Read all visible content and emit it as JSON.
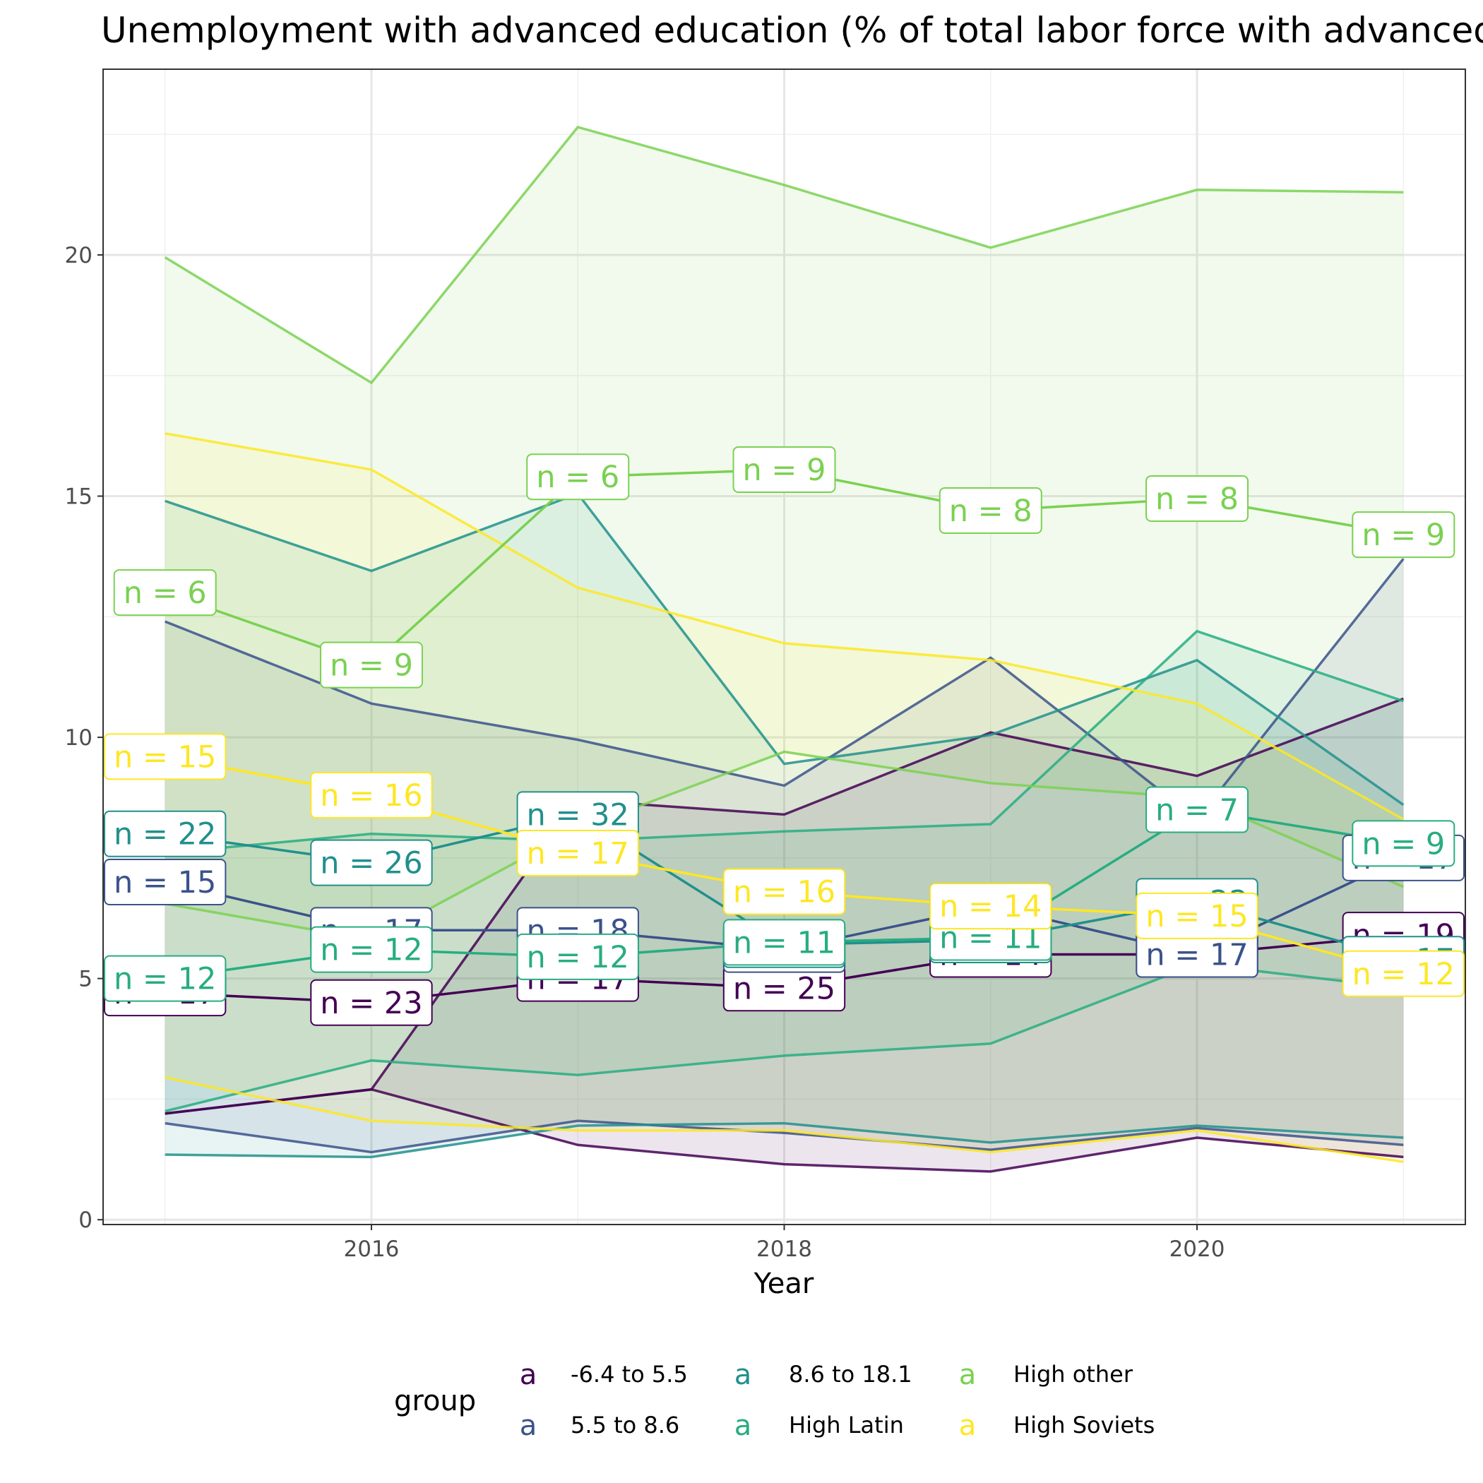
{
  "chart_data": {
    "type": "line",
    "title": "Unemployment with advanced education (% of total labor force with advanced education)",
    "xlabel": "Year",
    "ylabel": "",
    "x": [
      2015,
      2016,
      2017,
      2018,
      2019,
      2020,
      2021
    ],
    "xticks": [
      2016,
      2018,
      2020
    ],
    "yticks": [
      0,
      5,
      10,
      15,
      20
    ],
    "xlim": [
      2014.7,
      2021.3
    ],
    "ylim": [
      -0.1,
      23.85
    ],
    "grid": true,
    "legend": {
      "title": "group",
      "position": "bottom",
      "key_glyph": "a"
    },
    "groups": [
      {
        "name": "-6.4 to 5.5",
        "color": "#440154",
        "upper": [
          2.2,
          2.7,
          8.7,
          8.4,
          10.1,
          9.2,
          10.8
        ],
        "lower": [
          2.2,
          2.7,
          1.55,
          1.15,
          1.0,
          1.7,
          1.3
        ],
        "mean": [
          4.7,
          4.5,
          5.0,
          4.8,
          5.5,
          5.5,
          5.9
        ],
        "labels": [
          "n = 17",
          "n = 23",
          "n = 17",
          "n = 25",
          "n = 14",
          "n = 22",
          "n = 19"
        ]
      },
      {
        "name": "5.5 to 8.6",
        "color": "#3B528B",
        "upper": [
          12.4,
          10.7,
          9.95,
          9.0,
          11.65,
          8.3,
          13.7
        ],
        "lower": [
          2.0,
          1.4,
          2.05,
          1.8,
          1.45,
          1.9,
          1.55
        ],
        "mean": [
          7.0,
          6.0,
          6.0,
          5.6,
          6.5,
          5.5,
          7.5
        ],
        "labels": [
          "n = 15",
          "n = 17",
          "n = 18",
          "n = 16",
          "n = 22",
          "n = 17",
          "n = 17"
        ]
      },
      {
        "name": "8.6 to 18.1",
        "color": "#21908C",
        "upper": [
          14.9,
          13.45,
          15.05,
          9.45,
          10.05,
          11.6,
          8.6
        ],
        "lower": [
          1.35,
          1.3,
          1.95,
          2.0,
          1.6,
          1.95,
          1.7
        ],
        "mean": [
          8.0,
          7.4,
          8.4,
          5.7,
          5.8,
          6.6,
          5.4
        ],
        "labels": [
          "n = 22",
          "n = 26",
          "n = 32",
          "n = 13",
          "n = 11",
          "n = 22",
          "n = 17"
        ]
      },
      {
        "name": "High Latin",
        "color": "#27AD81",
        "upper": [
          7.6,
          8.0,
          7.85,
          8.05,
          8.2,
          12.2,
          10.75
        ],
        "lower": [
          2.25,
          3.3,
          3.0,
          3.4,
          3.65,
          5.3,
          4.8
        ],
        "mean": [
          5.0,
          5.6,
          5.45,
          5.75,
          5.85,
          8.5,
          7.8
        ],
        "labels": [
          "n = 12",
          "n = 12",
          "n = 12",
          "n = 11",
          "n = 11",
          "n = 7",
          "n = 9"
        ]
      },
      {
        "name": "High other",
        "color": "#7AD151",
        "upper": [
          19.95,
          17.35,
          22.65,
          21.45,
          20.15,
          21.35,
          21.3
        ],
        "lower": [
          6.55,
          5.8,
          8.1,
          9.7,
          9.05,
          8.75,
          6.9
        ],
        "mean": [
          13.0,
          11.5,
          15.4,
          15.55,
          14.7,
          14.95,
          14.2
        ],
        "labels": [
          "n = 6",
          "n = 9",
          "n = 6",
          "n = 9",
          "n = 8",
          "n = 8",
          "n = 9"
        ]
      },
      {
        "name": "High Soviets",
        "color": "#FDE725",
        "upper": [
          16.3,
          15.55,
          13.1,
          11.95,
          11.6,
          10.7,
          8.3
        ],
        "lower": [
          2.95,
          2.05,
          1.85,
          1.85,
          1.4,
          1.85,
          1.2
        ],
        "mean": [
          9.6,
          8.8,
          7.6,
          6.8,
          6.5,
          6.3,
          5.1
        ],
        "labels": [
          "n = 15",
          "n = 16",
          "n = 17",
          "n = 16",
          "n = 14",
          "n = 15",
          "n = 12"
        ]
      }
    ]
  }
}
